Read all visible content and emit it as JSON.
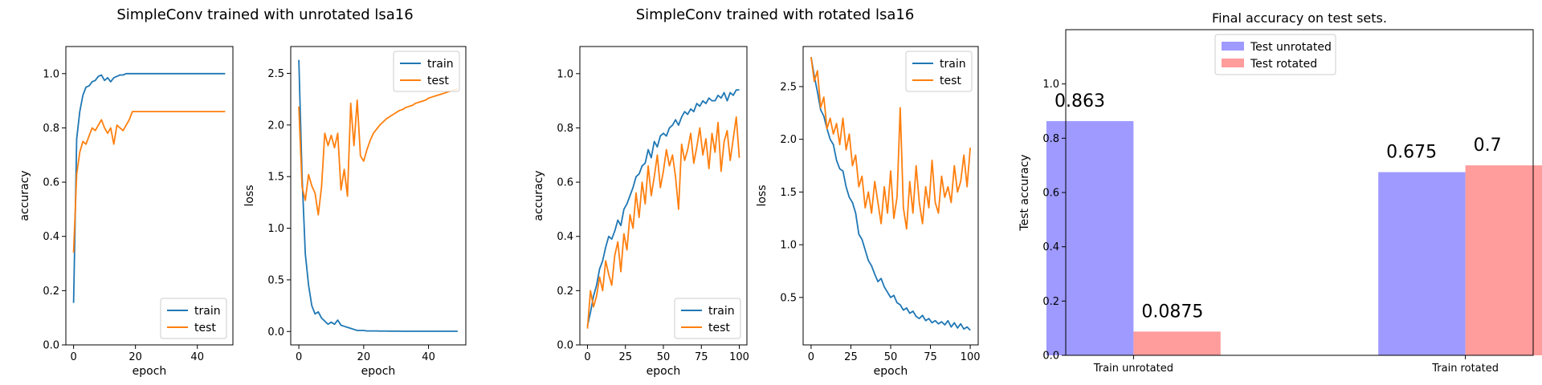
{
  "figure": {
    "suptitles": [
      "SimpleConv trained with unrotated lsa16",
      "SimpleConv trained with rotated lsa16"
    ]
  },
  "chart_data": [
    {
      "id": "acc_unrot",
      "type": "line",
      "title": "",
      "xlabel": "epoch",
      "ylabel": "accuracy",
      "xlim": [
        -2.5,
        51.5
      ],
      "ylim": [
        0.0,
        1.1
      ],
      "xticks": [
        0,
        20,
        40
      ],
      "xtick_labels": [
        "0",
        "20",
        "40"
      ],
      "yticks": [
        0.0,
        0.2,
        0.4,
        0.6,
        0.8,
        1.0
      ],
      "ytick_labels": [
        "0.0",
        "0.2",
        "0.4",
        "0.6",
        "0.8",
        "1.0"
      ],
      "legend": "lower-right",
      "grid": false,
      "series": [
        {
          "name": "train",
          "color": "#1f77b4",
          "x": [
            0,
            1,
            2,
            3,
            4,
            5,
            6,
            7,
            8,
            9,
            10,
            11,
            12,
            13,
            14,
            15,
            16,
            17,
            18,
            19,
            20,
            21,
            22,
            23,
            24,
            25,
            26,
            27,
            28,
            29,
            30,
            31,
            32,
            33,
            34,
            35,
            36,
            37,
            38,
            39,
            40,
            41,
            42,
            43,
            44,
            45,
            46,
            47,
            48,
            49
          ],
          "y": [
            0.155,
            0.76,
            0.86,
            0.92,
            0.95,
            0.955,
            0.97,
            0.975,
            0.99,
            0.995,
            0.975,
            0.985,
            0.97,
            0.985,
            0.99,
            0.995,
            0.995,
            1,
            1,
            1,
            1,
            1,
            1,
            1,
            1,
            1,
            1,
            1,
            1,
            1,
            1,
            1,
            1,
            1,
            1,
            1,
            1,
            1,
            1,
            1,
            1,
            1,
            1,
            1,
            1,
            1,
            1,
            1,
            1,
            1
          ]
        },
        {
          "name": "test",
          "color": "#ff7f0e",
          "x": [
            0,
            1,
            2,
            3,
            4,
            5,
            6,
            7,
            8,
            9,
            10,
            11,
            12,
            13,
            14,
            15,
            16,
            17,
            18,
            19,
            20,
            21,
            22,
            23,
            24,
            25,
            26,
            27,
            28,
            29,
            30,
            31,
            32,
            33,
            34,
            35,
            36,
            37,
            38,
            39,
            40,
            41,
            42,
            43,
            44,
            45,
            46,
            47,
            48,
            49
          ],
          "y": [
            0.34,
            0.63,
            0.71,
            0.75,
            0.74,
            0.77,
            0.8,
            0.79,
            0.81,
            0.83,
            0.8,
            0.78,
            0.8,
            0.74,
            0.81,
            0.8,
            0.79,
            0.81,
            0.83,
            0.86,
            0.86,
            0.86,
            0.86,
            0.86,
            0.86,
            0.86,
            0.86,
            0.86,
            0.86,
            0.86,
            0.86,
            0.86,
            0.86,
            0.86,
            0.86,
            0.86,
            0.86,
            0.86,
            0.86,
            0.86,
            0.86,
            0.86,
            0.86,
            0.86,
            0.86,
            0.86,
            0.86,
            0.86,
            0.86,
            0.86
          ]
        }
      ]
    },
    {
      "id": "loss_unrot",
      "type": "line",
      "title": "",
      "xlabel": "epoch",
      "ylabel": "loss",
      "xlim": [
        -2.5,
        51.5
      ],
      "ylim": [
        -0.13,
        2.76
      ],
      "xticks": [
        0,
        20,
        40
      ],
      "xtick_labels": [
        "0",
        "20",
        "40"
      ],
      "yticks": [
        0.0,
        0.5,
        1.0,
        1.5,
        2.0,
        2.5
      ],
      "ytick_labels": [
        "0.0",
        "0.5",
        "1.0",
        "1.5",
        "2.0",
        "2.5"
      ],
      "legend": "top-right",
      "grid": false,
      "series": [
        {
          "name": "train",
          "color": "#1f77b4",
          "x": [
            0,
            1,
            2,
            3,
            4,
            5,
            6,
            7,
            8,
            9,
            10,
            11,
            12,
            13,
            14,
            15,
            16,
            17,
            18,
            19,
            20,
            21,
            22,
            23,
            24,
            25,
            26,
            27,
            28,
            29,
            30,
            31,
            32,
            33,
            34,
            35,
            36,
            37,
            38,
            39,
            40,
            41,
            42,
            43,
            44,
            45,
            46,
            47,
            48,
            49
          ],
          "y": [
            2.63,
            1.5,
            0.75,
            0.45,
            0.25,
            0.17,
            0.19,
            0.13,
            0.1,
            0.07,
            0.09,
            0.07,
            0.11,
            0.06,
            0.05,
            0.04,
            0.03,
            0.02,
            0.01,
            0.01,
            0.01,
            0.005,
            0.005,
            0.005,
            0.005,
            0.004,
            0.004,
            0.004,
            0.003,
            0.003,
            0.003,
            0.003,
            0.002,
            0.002,
            0.002,
            0.002,
            0.002,
            0.002,
            0.002,
            0.002,
            0.002,
            0.002,
            0.002,
            0.002,
            0.002,
            0.002,
            0.002,
            0.002,
            0.002,
            0.002
          ]
        },
        {
          "name": "test",
          "color": "#ff7f0e",
          "x": [
            0,
            1,
            2,
            3,
            4,
            5,
            6,
            7,
            8,
            9,
            10,
            11,
            12,
            13,
            14,
            15,
            16,
            17,
            18,
            19,
            20,
            21,
            22,
            23,
            24,
            25,
            26,
            27,
            28,
            29,
            30,
            31,
            32,
            33,
            34,
            35,
            36,
            37,
            38,
            39,
            40,
            41,
            42,
            43,
            44,
            45,
            46,
            47,
            48,
            49
          ],
          "y": [
            2.18,
            1.4,
            1.27,
            1.52,
            1.41,
            1.34,
            1.13,
            1.4,
            1.92,
            1.8,
            1.9,
            1.78,
            1.92,
            1.37,
            1.57,
            1.31,
            2.21,
            1.8,
            2.24,
            1.7,
            1.65,
            1.76,
            1.85,
            1.92,
            1.96,
            2.0,
            2.03,
            2.06,
            2.08,
            2.1,
            2.12,
            2.14,
            2.15,
            2.17,
            2.18,
            2.19,
            2.21,
            2.22,
            2.23,
            2.24,
            2.26,
            2.27,
            2.28,
            2.29,
            2.3,
            2.31,
            2.32,
            2.33,
            2.34,
            2.35
          ]
        }
      ]
    },
    {
      "id": "acc_rot",
      "type": "line",
      "title": "",
      "xlabel": "epoch",
      "ylabel": "accuracy",
      "xlim": [
        -5,
        105
      ],
      "ylim": [
        0.0,
        1.1
      ],
      "xticks": [
        0,
        25,
        50,
        75,
        100
      ],
      "xtick_labels": [
        "0",
        "25",
        "50",
        "75",
        "100"
      ],
      "yticks": [
        0.0,
        0.2,
        0.4,
        0.6,
        0.8,
        1.0
      ],
      "ytick_labels": [
        "0.0",
        "0.2",
        "0.4",
        "0.6",
        "0.8",
        "1.0"
      ],
      "legend": "lower-right",
      "grid": false,
      "series": [
        {
          "name": "train",
          "color": "#1f77b4",
          "x": [
            0,
            2,
            4,
            6,
            8,
            10,
            12,
            14,
            16,
            18,
            20,
            22,
            24,
            26,
            28,
            30,
            32,
            34,
            36,
            38,
            40,
            42,
            44,
            46,
            48,
            50,
            52,
            54,
            56,
            58,
            60,
            62,
            64,
            66,
            68,
            70,
            72,
            74,
            76,
            78,
            80,
            82,
            84,
            86,
            88,
            90,
            92,
            94,
            96,
            98,
            100
          ],
          "y": [
            0.07,
            0.12,
            0.18,
            0.22,
            0.28,
            0.31,
            0.36,
            0.4,
            0.39,
            0.42,
            0.46,
            0.44,
            0.5,
            0.52,
            0.55,
            0.58,
            0.62,
            0.63,
            0.66,
            0.67,
            0.72,
            0.69,
            0.75,
            0.73,
            0.77,
            0.78,
            0.77,
            0.8,
            0.81,
            0.83,
            0.81,
            0.84,
            0.86,
            0.85,
            0.87,
            0.86,
            0.89,
            0.88,
            0.9,
            0.89,
            0.91,
            0.9,
            0.9,
            0.92,
            0.91,
            0.93,
            0.9,
            0.93,
            0.92,
            0.94,
            0.94
          ]
        },
        {
          "name": "test",
          "color": "#ff7f0e",
          "x": [
            0,
            2,
            4,
            6,
            8,
            10,
            12,
            14,
            16,
            18,
            20,
            22,
            24,
            26,
            28,
            30,
            32,
            34,
            36,
            38,
            40,
            42,
            44,
            46,
            48,
            50,
            52,
            54,
            56,
            58,
            60,
            62,
            64,
            66,
            68,
            70,
            72,
            74,
            76,
            78,
            80,
            82,
            84,
            86,
            88,
            90,
            92,
            94,
            96,
            98,
            100
          ],
          "y": [
            0.06,
            0.2,
            0.14,
            0.18,
            0.25,
            0.2,
            0.31,
            0.26,
            0.22,
            0.33,
            0.38,
            0.27,
            0.41,
            0.35,
            0.48,
            0.43,
            0.56,
            0.47,
            0.6,
            0.52,
            0.66,
            0.55,
            0.62,
            0.7,
            0.58,
            0.64,
            0.72,
            0.66,
            0.7,
            0.62,
            0.5,
            0.74,
            0.68,
            0.72,
            0.78,
            0.67,
            0.73,
            0.8,
            0.7,
            0.76,
            0.65,
            0.78,
            0.71,
            0.82,
            0.64,
            0.75,
            0.79,
            0.68,
            0.76,
            0.84,
            0.69
          ]
        }
      ]
    },
    {
      "id": "loss_rot",
      "type": "line",
      "title": "",
      "xlabel": "epoch",
      "ylabel": "loss",
      "xlim": [
        -5,
        105
      ],
      "ylim": [
        0.05,
        2.88
      ],
      "xticks": [
        0,
        25,
        50,
        75,
        100
      ],
      "xtick_labels": [
        "0",
        "25",
        "50",
        "75",
        "100"
      ],
      "yticks": [
        0.5,
        1.0,
        1.5,
        2.0,
        2.5
      ],
      "ytick_labels": [
        "0.5",
        "1.0",
        "1.5",
        "2.0",
        "2.5"
      ],
      "legend": "top-right",
      "grid": false,
      "series": [
        {
          "name": "train",
          "color": "#1f77b4",
          "x": [
            0,
            2,
            4,
            6,
            8,
            10,
            12,
            14,
            16,
            18,
            20,
            22,
            24,
            26,
            28,
            30,
            32,
            34,
            36,
            38,
            40,
            42,
            44,
            46,
            48,
            50,
            52,
            54,
            56,
            58,
            60,
            62,
            64,
            66,
            68,
            70,
            72,
            74,
            76,
            78,
            80,
            82,
            84,
            86,
            88,
            90,
            92,
            94,
            96,
            98,
            100
          ],
          "y": [
            2.78,
            2.6,
            2.45,
            2.28,
            2.22,
            2.1,
            2.0,
            1.95,
            1.8,
            1.72,
            1.7,
            1.55,
            1.45,
            1.4,
            1.3,
            1.1,
            1.05,
            0.95,
            0.85,
            0.8,
            0.72,
            0.65,
            0.68,
            0.6,
            0.55,
            0.5,
            0.52,
            0.45,
            0.43,
            0.38,
            0.4,
            0.35,
            0.37,
            0.32,
            0.3,
            0.33,
            0.28,
            0.3,
            0.26,
            0.28,
            0.25,
            0.27,
            0.24,
            0.28,
            0.22,
            0.26,
            0.21,
            0.25,
            0.2,
            0.22,
            0.19
          ]
        },
        {
          "name": "test",
          "color": "#ff7f0e",
          "x": [
            0,
            2,
            4,
            6,
            8,
            10,
            12,
            14,
            16,
            18,
            20,
            22,
            24,
            26,
            28,
            30,
            32,
            34,
            36,
            38,
            40,
            42,
            44,
            46,
            48,
            50,
            52,
            54,
            56,
            58,
            60,
            62,
            64,
            66,
            68,
            70,
            72,
            74,
            76,
            78,
            80,
            82,
            84,
            86,
            88,
            90,
            92,
            94,
            96,
            98,
            100
          ],
          "y": [
            2.78,
            2.55,
            2.65,
            2.3,
            2.4,
            2.1,
            2.2,
            2.05,
            2.15,
            1.95,
            2.2,
            1.9,
            2.05,
            1.75,
            1.85,
            1.55,
            1.65,
            1.35,
            1.5,
            1.3,
            1.6,
            1.4,
            1.2,
            1.55,
            1.3,
            1.7,
            1.25,
            1.45,
            2.3,
            1.35,
            1.15,
            1.6,
            1.3,
            1.75,
            1.4,
            1.2,
            1.55,
            1.35,
            1.8,
            1.4,
            1.3,
            1.65,
            1.45,
            1.55,
            1.4,
            1.75,
            1.5,
            1.6,
            1.85,
            1.55,
            1.92
          ]
        }
      ]
    },
    {
      "id": "final_acc",
      "type": "bar",
      "title": "Final accuracy on test sets.",
      "xlabel": "",
      "ylabel": "Test accuracy",
      "ylim": [
        0.0,
        1.2
      ],
      "yticks": [
        0.0,
        0.2,
        0.4,
        0.6,
        0.8,
        1.0
      ],
      "ytick_labels": [
        "0.0",
        "0.2",
        "0.4",
        "0.6",
        "0.8",
        "1.0"
      ],
      "categories": [
        "Train unrotated",
        "Train rotated"
      ],
      "legend": "top-center",
      "grid": false,
      "series": [
        {
          "name": "Test unrotated",
          "color": "#9e9aff",
          "values": [
            0.863,
            0.675
          ],
          "labels": [
            "0.863",
            "0.675"
          ]
        },
        {
          "name": "Test rotated",
          "color": "#ff9c9c",
          "values": [
            0.0875,
            0.7
          ],
          "labels": [
            "0.0875",
            "0.7"
          ]
        }
      ]
    }
  ]
}
